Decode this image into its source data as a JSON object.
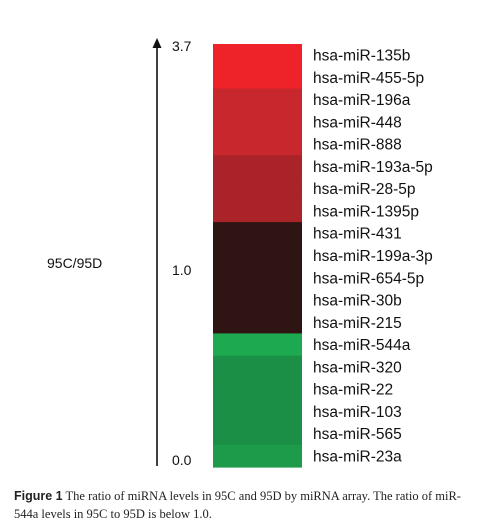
{
  "chart_data": {
    "type": "heatmap",
    "ylabel": "95C/95D",
    "tick_labels": [
      "3.7",
      "1.0",
      "0.0"
    ],
    "scale": {
      "max": 3.7,
      "mid": 1.0,
      "min": 0.0
    },
    "rows": [
      {
        "label": "hsa-miR-135b",
        "color": "#ee2229"
      },
      {
        "label": "hsa-miR-455-5p",
        "color": "#ee2229"
      },
      {
        "label": "hsa-miR-196a",
        "color": "#c8272d"
      },
      {
        "label": "hsa-miR-448",
        "color": "#c8272d"
      },
      {
        "label": "hsa-miR-888",
        "color": "#c8272d"
      },
      {
        "label": "hsa-miR-193a-5p",
        "color": "#a92328"
      },
      {
        "label": "hsa-miR-28-5p",
        "color": "#a92328"
      },
      {
        "label": "hsa-miR-1395p",
        "color": "#a92328"
      },
      {
        "label": "hsa-miR-431",
        "color": "#2f1414"
      },
      {
        "label": "hsa-miR-199a-3p",
        "color": "#2f1414"
      },
      {
        "label": "hsa-miR-654-5p",
        "color": "#2f1414"
      },
      {
        "label": "hsa-miR-30b",
        "color": "#2f1414"
      },
      {
        "label": "hsa-miR-215",
        "color": "#2f1414"
      },
      {
        "label": "hsa-miR-544a",
        "color": "#1ca950"
      },
      {
        "label": "hsa-miR-320",
        "color": "#1a8f45"
      },
      {
        "label": "hsa-miR-22",
        "color": "#1a8f45"
      },
      {
        "label": "hsa-miR-103",
        "color": "#1a8f45"
      },
      {
        "label": "hsa-miR-565",
        "color": "#1a8f45"
      },
      {
        "label": "hsa-miR-23a",
        "color": "#1d9b4b"
      }
    ]
  },
  "caption": {
    "label": "Figure 1",
    "text": " The ratio of miRNA levels in 95C and 95D by miRNA array. The ratio of miR-544a levels in 95C to 95D is below 1.0."
  }
}
